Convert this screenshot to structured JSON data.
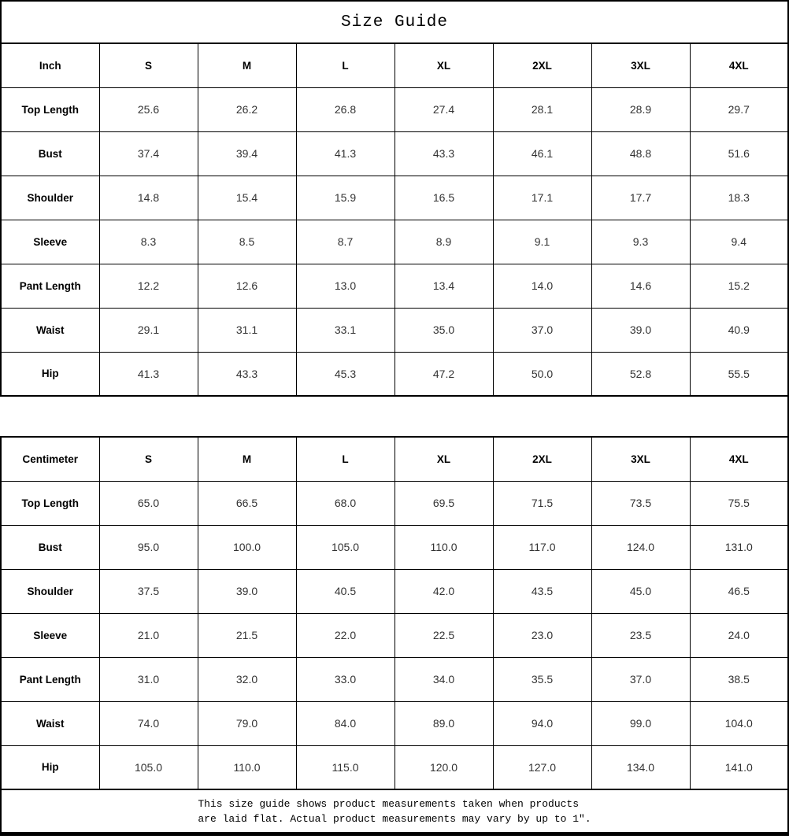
{
  "page_title": "Size Guide",
  "footer_lines": [
    "This size guide shows product measurements taken when products",
    "are laid flat. Actual product measurements may vary by up to 1″."
  ],
  "colors": {
    "border": "#000000",
    "background": "#ffffff",
    "label_text": "#000000",
    "value_text": "#333333"
  },
  "chart_data": [
    {
      "type": "table",
      "title": "Size Guide",
      "unit": "Inch",
      "columns": [
        "Inch",
        "S",
        "M",
        "L",
        "XL",
        "2XL",
        "3XL",
        "4XL"
      ],
      "rows": [
        [
          "Top Length",
          "25.6",
          "26.2",
          "26.8",
          "27.4",
          "28.1",
          "28.9",
          "29.7"
        ],
        [
          "Bust",
          "37.4",
          "39.4",
          "41.3",
          "43.3",
          "46.1",
          "48.8",
          "51.6"
        ],
        [
          "Shoulder",
          "14.8",
          "15.4",
          "15.9",
          "16.5",
          "17.1",
          "17.7",
          "18.3"
        ],
        [
          "Sleeve",
          "8.3",
          "8.5",
          "8.7",
          "8.9",
          "9.1",
          "9.3",
          "9.4"
        ],
        [
          "Pant Length",
          "12.2",
          "12.6",
          "13.0",
          "13.4",
          "14.0",
          "14.6",
          "15.2"
        ],
        [
          "Waist",
          "29.1",
          "31.1",
          "33.1",
          "35.0",
          "37.0",
          "39.0",
          "40.9"
        ],
        [
          "Hip",
          "41.3",
          "43.3",
          "45.3",
          "47.2",
          "50.0",
          "52.8",
          "55.5"
        ]
      ]
    },
    {
      "type": "table",
      "title": "Size Guide",
      "unit": "Centimeter",
      "columns": [
        "Centimeter",
        "S",
        "M",
        "L",
        "XL",
        "2XL",
        "3XL",
        "4XL"
      ],
      "rows": [
        [
          "Top Length",
          "65.0",
          "66.5",
          "68.0",
          "69.5",
          "71.5",
          "73.5",
          "75.5"
        ],
        [
          "Bust",
          "95.0",
          "100.0",
          "105.0",
          "110.0",
          "117.0",
          "124.0",
          "131.0"
        ],
        [
          "Shoulder",
          "37.5",
          "39.0",
          "40.5",
          "42.0",
          "43.5",
          "45.0",
          "46.5"
        ],
        [
          "Sleeve",
          "21.0",
          "21.5",
          "22.0",
          "22.5",
          "23.0",
          "23.5",
          "24.0"
        ],
        [
          "Pant Length",
          "31.0",
          "32.0",
          "33.0",
          "34.0",
          "35.5",
          "37.0",
          "38.5"
        ],
        [
          "Waist",
          "74.0",
          "79.0",
          "84.0",
          "89.0",
          "94.0",
          "99.0",
          "104.0"
        ],
        [
          "Hip",
          "105.0",
          "110.0",
          "115.0",
          "120.0",
          "127.0",
          "134.0",
          "141.0"
        ]
      ]
    }
  ]
}
